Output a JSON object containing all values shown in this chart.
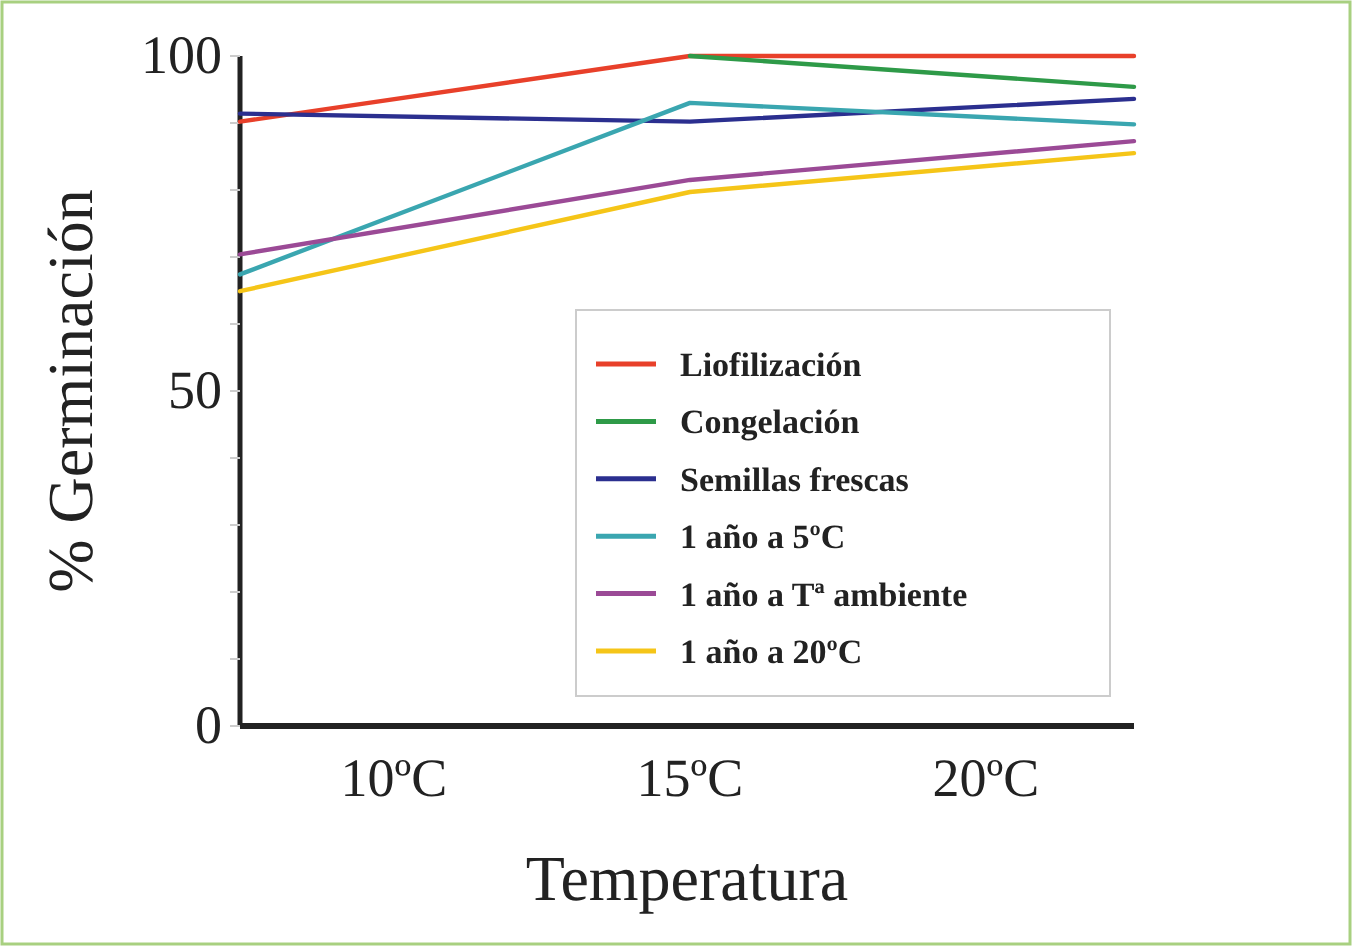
{
  "chart_data": {
    "type": "line",
    "xlabel": "Temperatura",
    "ylabel": "% Germinación",
    "x": [
      7.4,
      15,
      22.5
    ],
    "xlim": [
      7.4,
      22.5
    ],
    "xticks": [
      {
        "value": 10,
        "label": "10ºC"
      },
      {
        "value": 15,
        "label": "15ºC"
      },
      {
        "value": 20,
        "label": "20ºC"
      }
    ],
    "ylim": [
      0,
      100
    ],
    "yticks": [
      0,
      {
        "value": 10,
        "label": null
      },
      {
        "value": 20,
        "label": null
      },
      {
        "value": 30,
        "label": null
      },
      {
        "value": 40,
        "label": null
      },
      50,
      {
        "value": 60,
        "label": null
      },
      {
        "value": 70,
        "label": null
      },
      {
        "value": 80,
        "label": null
      },
      {
        "value": 90,
        "label": null
      },
      100
    ],
    "legend": "bottom right",
    "grid": false,
    "marker": "none",
    "line_style": "solid",
    "series": [
      {
        "name": "Liofilización",
        "color": "#e8402a",
        "values": [
          90.2,
          100,
          100
        ]
      },
      {
        "name": "Congelación",
        "color": "#2e9a48",
        "values": [
          null,
          100,
          95.4
        ]
      },
      {
        "name": "Semillas frescas",
        "color": "#2b2f8f",
        "values": [
          91.4,
          90.2,
          93.6
        ]
      },
      {
        "name": "1 año a 5ºC",
        "color": "#3aa6b0",
        "values": [
          67.4,
          93,
          89.8
        ]
      },
      {
        "name": "1 año a Tª ambiente",
        "color": "#9b4a96",
        "values": [
          70.4,
          81.5,
          87.3
        ]
      },
      {
        "name": "1 año a 20ºC",
        "color": "#f5c518",
        "values": [
          64.9,
          79.7,
          85.5
        ]
      }
    ]
  }
}
